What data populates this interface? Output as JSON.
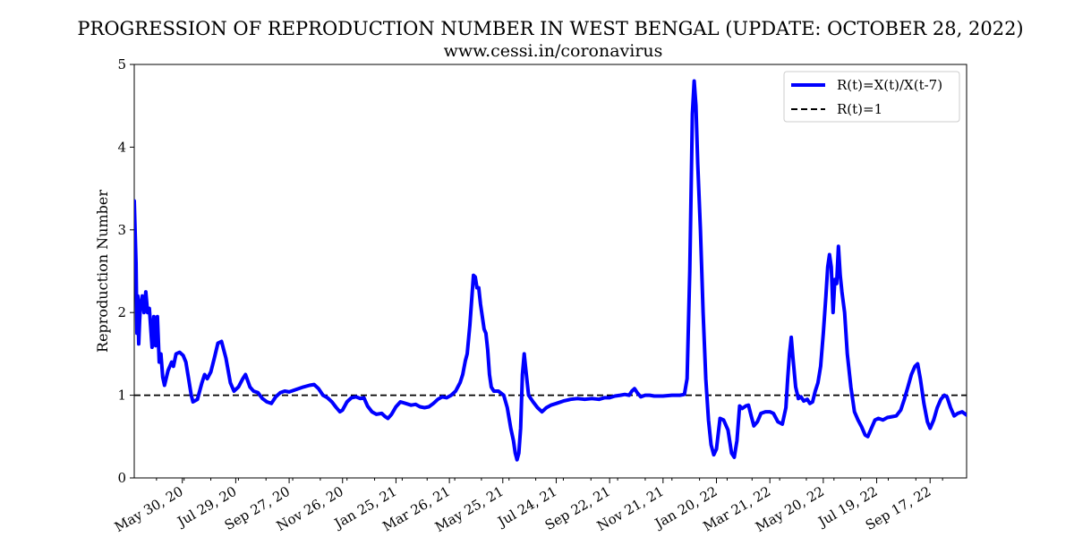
{
  "chart_data": {
    "type": "line",
    "title": "PROGRESSION OF REPRODUCTION NUMBER IN WEST BENGAL (UPDATE: OCTOBER 28, 2022)",
    "subtitle": "www.cessi.in/coronavirus",
    "xlabel": "",
    "ylabel": "Reproduction Number",
    "ylim": [
      0,
      5
    ],
    "yticks": [
      0,
      1,
      2,
      3,
      4,
      5
    ],
    "xlim": [
      "2020-04-06",
      "2022-10-28"
    ],
    "xticks": [
      {
        "date": "2020-05-30",
        "label": "May 30, 20"
      },
      {
        "date": "2020-07-29",
        "label": "Jul 29, 20"
      },
      {
        "date": "2020-09-27",
        "label": "Sep 27, 20"
      },
      {
        "date": "2020-11-26",
        "label": "Nov 26, 20"
      },
      {
        "date": "2021-01-25",
        "label": "Jan 25, 21"
      },
      {
        "date": "2021-03-26",
        "label": "Mar 26, 21"
      },
      {
        "date": "2021-05-25",
        "label": "May 25, 21"
      },
      {
        "date": "2021-07-24",
        "label": "Jul 24, 21"
      },
      {
        "date": "2021-09-22",
        "label": "Sep 22, 21"
      },
      {
        "date": "2021-11-21",
        "label": "Nov 21, 21"
      },
      {
        "date": "2022-01-20",
        "label": "Jan 20, 22"
      },
      {
        "date": "2022-03-21",
        "label": "Mar 21, 22"
      },
      {
        "date": "2022-05-20",
        "label": "May 20, 22"
      },
      {
        "date": "2022-07-19",
        "label": "Jul 19, 22"
      },
      {
        "date": "2022-09-17",
        "label": "Sep 17, 22"
      }
    ],
    "legend_position": "top-right",
    "grid": false,
    "reference_line": {
      "name": "R(t)=1",
      "y": 1,
      "style": "dashed",
      "color": "#000000"
    },
    "series": [
      {
        "name": "R(t)=X(t)/X(t-7)",
        "color": "#0000ff",
        "points": [
          [
            "2020-04-06",
            3.35
          ],
          [
            "2020-04-08",
            2.6
          ],
          [
            "2020-04-09",
            1.75
          ],
          [
            "2020-04-10",
            2.2
          ],
          [
            "2020-04-11",
            1.62
          ],
          [
            "2020-04-12",
            1.9
          ],
          [
            "2020-04-13",
            2.1
          ],
          [
            "2020-04-15",
            2.2
          ],
          [
            "2020-04-17",
            2.0
          ],
          [
            "2020-04-19",
            2.25
          ],
          [
            "2020-04-21",
            2.0
          ],
          [
            "2020-04-23",
            2.05
          ],
          [
            "2020-04-26",
            1.58
          ],
          [
            "2020-04-28",
            1.95
          ],
          [
            "2020-04-30",
            1.6
          ],
          [
            "2020-05-02",
            1.95
          ],
          [
            "2020-05-04",
            1.4
          ],
          [
            "2020-05-06",
            1.5
          ],
          [
            "2020-05-08",
            1.22
          ],
          [
            "2020-05-10",
            1.12
          ],
          [
            "2020-05-14",
            1.3
          ],
          [
            "2020-05-18",
            1.4
          ],
          [
            "2020-05-20",
            1.35
          ],
          [
            "2020-05-23",
            1.5
          ],
          [
            "2020-05-27",
            1.52
          ],
          [
            "2020-05-31",
            1.48
          ],
          [
            "2020-06-03",
            1.4
          ],
          [
            "2020-06-06",
            1.2
          ],
          [
            "2020-06-09",
            1.0
          ],
          [
            "2020-06-11",
            0.92
          ],
          [
            "2020-06-16",
            0.95
          ],
          [
            "2020-06-21",
            1.15
          ],
          [
            "2020-06-24",
            1.25
          ],
          [
            "2020-06-27",
            1.2
          ],
          [
            "2020-07-01",
            1.28
          ],
          [
            "2020-07-05",
            1.45
          ],
          [
            "2020-07-09",
            1.63
          ],
          [
            "2020-07-13",
            1.65
          ],
          [
            "2020-07-18",
            1.45
          ],
          [
            "2020-07-23",
            1.15
          ],
          [
            "2020-07-27",
            1.05
          ],
          [
            "2020-08-01",
            1.1
          ],
          [
            "2020-08-06",
            1.2
          ],
          [
            "2020-08-09",
            1.25
          ],
          [
            "2020-08-14",
            1.1
          ],
          [
            "2020-08-18",
            1.05
          ],
          [
            "2020-08-23",
            1.03
          ],
          [
            "2020-08-28",
            0.96
          ],
          [
            "2020-09-02",
            0.92
          ],
          [
            "2020-09-07",
            0.9
          ],
          [
            "2020-09-12",
            0.98
          ],
          [
            "2020-09-17",
            1.03
          ],
          [
            "2020-09-22",
            1.05
          ],
          [
            "2020-09-27",
            1.04
          ],
          [
            "2020-10-05",
            1.07
          ],
          [
            "2020-10-13",
            1.1
          ],
          [
            "2020-10-20",
            1.12
          ],
          [
            "2020-10-25",
            1.13
          ],
          [
            "2020-10-30",
            1.08
          ],
          [
            "2020-11-04",
            1.0
          ],
          [
            "2020-11-09",
            0.97
          ],
          [
            "2020-11-14",
            0.92
          ],
          [
            "2020-11-19",
            0.85
          ],
          [
            "2020-11-23",
            0.8
          ],
          [
            "2020-11-26",
            0.82
          ],
          [
            "2020-12-01",
            0.92
          ],
          [
            "2020-12-06",
            0.97
          ],
          [
            "2020-12-11",
            0.98
          ],
          [
            "2020-12-16",
            0.96
          ],
          [
            "2020-12-20",
            0.97
          ],
          [
            "2020-12-24",
            0.87
          ],
          [
            "2020-12-29",
            0.8
          ],
          [
            "2021-01-03",
            0.77
          ],
          [
            "2021-01-09",
            0.78
          ],
          [
            "2021-01-13",
            0.74
          ],
          [
            "2021-01-16",
            0.72
          ],
          [
            "2021-01-20",
            0.77
          ],
          [
            "2021-01-25",
            0.86
          ],
          [
            "2021-01-30",
            0.92
          ],
          [
            "2021-02-05",
            0.9
          ],
          [
            "2021-02-11",
            0.88
          ],
          [
            "2021-02-16",
            0.89
          ],
          [
            "2021-02-21",
            0.86
          ],
          [
            "2021-02-26",
            0.85
          ],
          [
            "2021-03-03",
            0.86
          ],
          [
            "2021-03-08",
            0.9
          ],
          [
            "2021-03-13",
            0.95
          ],
          [
            "2021-03-18",
            0.98
          ],
          [
            "2021-03-23",
            0.97
          ],
          [
            "2021-03-28",
            1.0
          ],
          [
            "2021-04-02",
            1.05
          ],
          [
            "2021-04-07",
            1.15
          ],
          [
            "2021-04-10",
            1.25
          ],
          [
            "2021-04-13",
            1.42
          ],
          [
            "2021-04-15",
            1.5
          ],
          [
            "2021-04-18",
            1.85
          ],
          [
            "2021-04-20",
            2.15
          ],
          [
            "2021-04-22",
            2.45
          ],
          [
            "2021-04-24",
            2.43
          ],
          [
            "2021-04-26",
            2.3
          ],
          [
            "2021-04-28",
            2.3
          ],
          [
            "2021-04-30",
            2.1
          ],
          [
            "2021-05-02",
            1.95
          ],
          [
            "2021-05-04",
            1.8
          ],
          [
            "2021-05-06",
            1.75
          ],
          [
            "2021-05-08",
            1.55
          ],
          [
            "2021-05-10",
            1.25
          ],
          [
            "2021-05-12",
            1.1
          ],
          [
            "2021-05-15",
            1.05
          ],
          [
            "2021-05-20",
            1.05
          ],
          [
            "2021-05-26",
            1.0
          ],
          [
            "2021-05-30",
            0.85
          ],
          [
            "2021-06-03",
            0.6
          ],
          [
            "2021-06-06",
            0.45
          ],
          [
            "2021-06-08",
            0.3
          ],
          [
            "2021-06-10",
            0.22
          ],
          [
            "2021-06-12",
            0.3
          ],
          [
            "2021-06-14",
            0.6
          ],
          [
            "2021-06-16",
            1.25
          ],
          [
            "2021-06-18",
            1.5
          ],
          [
            "2021-06-20",
            1.3
          ],
          [
            "2021-06-23",
            1.0
          ],
          [
            "2021-06-28",
            0.92
          ],
          [
            "2021-07-03",
            0.85
          ],
          [
            "2021-07-08",
            0.8
          ],
          [
            "2021-07-13",
            0.85
          ],
          [
            "2021-07-18",
            0.88
          ],
          [
            "2021-07-24",
            0.9
          ],
          [
            "2021-08-01",
            0.93
          ],
          [
            "2021-08-09",
            0.95
          ],
          [
            "2021-08-17",
            0.96
          ],
          [
            "2021-08-25",
            0.95
          ],
          [
            "2021-09-02",
            0.96
          ],
          [
            "2021-09-10",
            0.95
          ],
          [
            "2021-09-16",
            0.97
          ],
          [
            "2021-09-22",
            0.97
          ],
          [
            "2021-09-28",
            0.99
          ],
          [
            "2021-10-04",
            1.0
          ],
          [
            "2021-10-09",
            1.01
          ],
          [
            "2021-10-14",
            1.0
          ],
          [
            "2021-10-17",
            1.05
          ],
          [
            "2021-10-20",
            1.08
          ],
          [
            "2021-10-23",
            1.03
          ],
          [
            "2021-10-27",
            0.98
          ],
          [
            "2021-11-01",
            1.0
          ],
          [
            "2021-11-06",
            1.0
          ],
          [
            "2021-11-11",
            0.99
          ],
          [
            "2021-11-21",
            0.99
          ],
          [
            "2021-12-01",
            1.0
          ],
          [
            "2021-12-10",
            1.0
          ],
          [
            "2021-12-15",
            1.01
          ],
          [
            "2021-12-18",
            1.2
          ],
          [
            "2021-12-21",
            2.5
          ],
          [
            "2021-12-24",
            4.4
          ],
          [
            "2021-12-26",
            4.8
          ],
          [
            "2021-12-28",
            4.5
          ],
          [
            "2021-12-30",
            3.8
          ],
          [
            "2022-01-02",
            3.0
          ],
          [
            "2022-01-05",
            2.0
          ],
          [
            "2022-01-08",
            1.2
          ],
          [
            "2022-01-11",
            0.7
          ],
          [
            "2022-01-14",
            0.4
          ],
          [
            "2022-01-17",
            0.28
          ],
          [
            "2022-01-20",
            0.35
          ],
          [
            "2022-01-24",
            0.72
          ],
          [
            "2022-01-28",
            0.7
          ],
          [
            "2022-02-02",
            0.58
          ],
          [
            "2022-02-06",
            0.3
          ],
          [
            "2022-02-09",
            0.25
          ],
          [
            "2022-02-12",
            0.45
          ],
          [
            "2022-02-15",
            0.87
          ],
          [
            "2022-02-18",
            0.84
          ],
          [
            "2022-02-22",
            0.87
          ],
          [
            "2022-02-25",
            0.88
          ],
          [
            "2022-02-28",
            0.75
          ],
          [
            "2022-03-03",
            0.63
          ],
          [
            "2022-03-07",
            0.68
          ],
          [
            "2022-03-11",
            0.78
          ],
          [
            "2022-03-16",
            0.8
          ],
          [
            "2022-03-21",
            0.8
          ],
          [
            "2022-03-25",
            0.78
          ],
          [
            "2022-03-30",
            0.68
          ],
          [
            "2022-04-04",
            0.65
          ],
          [
            "2022-04-08",
            0.85
          ],
          [
            "2022-04-10",
            1.2
          ],
          [
            "2022-04-12",
            1.5
          ],
          [
            "2022-04-14",
            1.7
          ],
          [
            "2022-04-16",
            1.45
          ],
          [
            "2022-04-19",
            1.1
          ],
          [
            "2022-04-22",
            0.96
          ],
          [
            "2022-04-25",
            0.98
          ],
          [
            "2022-04-28",
            0.93
          ],
          [
            "2022-05-02",
            0.95
          ],
          [
            "2022-05-05",
            0.9
          ],
          [
            "2022-05-08",
            0.92
          ],
          [
            "2022-05-11",
            1.05
          ],
          [
            "2022-05-14",
            1.15
          ],
          [
            "2022-05-17",
            1.35
          ],
          [
            "2022-05-20",
            1.75
          ],
          [
            "2022-05-23",
            2.2
          ],
          [
            "2022-05-25",
            2.55
          ],
          [
            "2022-05-27",
            2.7
          ],
          [
            "2022-05-29",
            2.55
          ],
          [
            "2022-05-31",
            2.0
          ],
          [
            "2022-06-02",
            2.4
          ],
          [
            "2022-06-04",
            2.35
          ],
          [
            "2022-06-06",
            2.8
          ],
          [
            "2022-06-08",
            2.45
          ],
          [
            "2022-06-10",
            2.25
          ],
          [
            "2022-06-13",
            2.0
          ],
          [
            "2022-06-16",
            1.5
          ],
          [
            "2022-06-20",
            1.1
          ],
          [
            "2022-06-24",
            0.8
          ],
          [
            "2022-06-28",
            0.7
          ],
          [
            "2022-07-02",
            0.62
          ],
          [
            "2022-07-06",
            0.52
          ],
          [
            "2022-07-09",
            0.5
          ],
          [
            "2022-07-13",
            0.6
          ],
          [
            "2022-07-17",
            0.7
          ],
          [
            "2022-07-21",
            0.72
          ],
          [
            "2022-07-26",
            0.7
          ],
          [
            "2022-07-31",
            0.73
          ],
          [
            "2022-08-05",
            0.74
          ],
          [
            "2022-08-10",
            0.75
          ],
          [
            "2022-08-15",
            0.82
          ],
          [
            "2022-08-19",
            0.95
          ],
          [
            "2022-08-23",
            1.1
          ],
          [
            "2022-08-27",
            1.25
          ],
          [
            "2022-08-31",
            1.35
          ],
          [
            "2022-09-03",
            1.38
          ],
          [
            "2022-09-06",
            1.2
          ],
          [
            "2022-09-10",
            0.9
          ],
          [
            "2022-09-14",
            0.68
          ],
          [
            "2022-09-17",
            0.6
          ],
          [
            "2022-09-21",
            0.7
          ],
          [
            "2022-09-25",
            0.85
          ],
          [
            "2022-09-29",
            0.95
          ],
          [
            "2022-10-03",
            1.0
          ],
          [
            "2022-10-06",
            0.98
          ],
          [
            "2022-10-10",
            0.85
          ],
          [
            "2022-10-14",
            0.75
          ],
          [
            "2022-10-18",
            0.78
          ],
          [
            "2022-10-23",
            0.8
          ],
          [
            "2022-10-28",
            0.76
          ]
        ]
      }
    ]
  }
}
